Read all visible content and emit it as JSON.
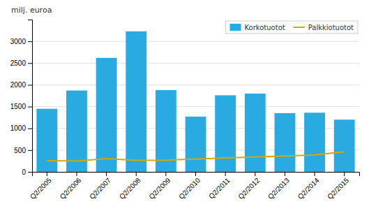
{
  "chart_data": {
    "type": "bar",
    "ylabel": "milj. euroa",
    "categories": [
      "Q2/2005",
      "Q2/2006",
      "Q2/2007",
      "Q2/2008",
      "Q2/2009",
      "Q2/2010",
      "Q2/2011",
      "Q2/2012",
      "Q2/2013",
      "Q2/2014",
      "Q2/2015"
    ],
    "series": [
      {
        "name": "Korkotuotot",
        "type": "bar",
        "color": "#29ABE2",
        "values": [
          1450,
          1870,
          2620,
          3230,
          1880,
          1270,
          1760,
          1800,
          1350,
          1360,
          1200
        ]
      },
      {
        "name": "Palkkiotuotot",
        "type": "line",
        "color": "#D4A800",
        "values": [
          255,
          250,
          305,
          265,
          270,
          295,
          320,
          340,
          365,
          390,
          460
        ]
      }
    ],
    "ylim": [
      0,
      3500
    ],
    "yticks": [
      0,
      500,
      1000,
      1500,
      2000,
      2500,
      3000
    ],
    "grid": true,
    "legend": "upper right"
  }
}
